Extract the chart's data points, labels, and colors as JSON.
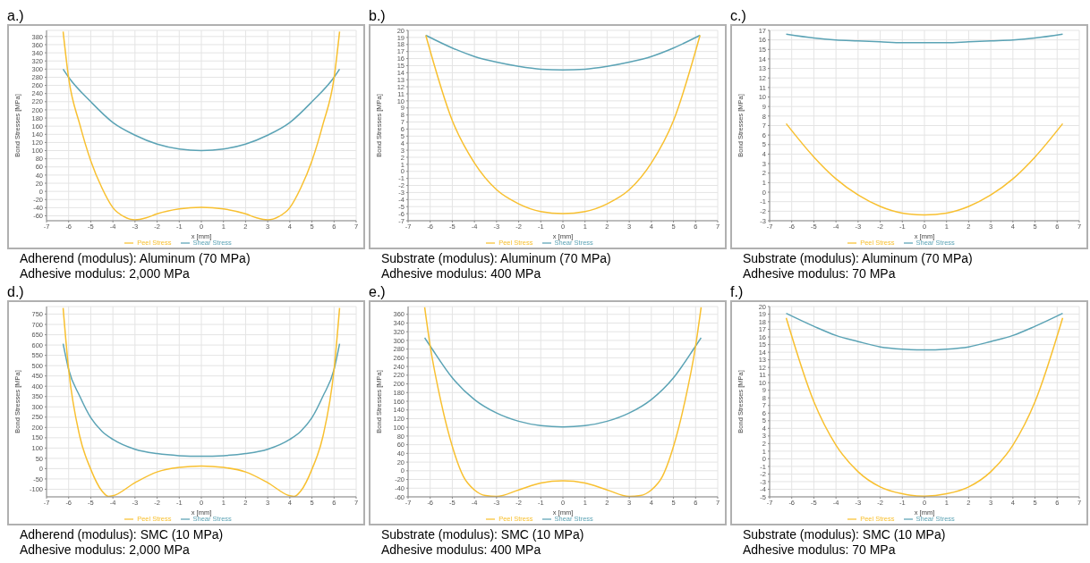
{
  "chart_data": [
    {
      "type": "line",
      "title": "a.)",
      "xlabel": "x [mm]",
      "ylabel": "Bond Stresses [MPa]",
      "xlim": [
        -7,
        7
      ],
      "xticks": [
        -7,
        -6,
        -5,
        -4,
        -3,
        -2,
        -1,
        0,
        1,
        2,
        3,
        4,
        5,
        6,
        7
      ],
      "ylim": [
        -72,
        395
      ],
      "yticks": [
        -60,
        -40,
        -20,
        0,
        20,
        40,
        60,
        80,
        100,
        120,
        140,
        160,
        180,
        200,
        220,
        240,
        260,
        280,
        300,
        320,
        340,
        360,
        380
      ],
      "grid": true,
      "legend": "bottom",
      "annotations": [
        "Adherend (modulus): Aluminum (70 MPa)",
        "Adhesive modulus: 2,000 MPa"
      ],
      "series": [
        {
          "name": "Shear Stress",
          "color": "#5ba3b5",
          "x": [
            -6.25,
            -6,
            -5,
            -4,
            -3,
            -2,
            -1,
            0,
            1,
            2,
            3,
            4,
            5,
            6,
            6.25
          ],
          "values": [
            300,
            280,
            220,
            169,
            138,
            116,
            104,
            100,
            104,
            116,
            138,
            169,
            220,
            280,
            300
          ]
        },
        {
          "name": "Peel Stress",
          "color": "#f8c030",
          "x": [
            -6.25,
            -6,
            -5.5,
            -5,
            -4.5,
            -4,
            -3.5,
            -3,
            -2.5,
            -2,
            -1,
            0,
            1,
            2,
            2.5,
            3,
            3.5,
            4,
            4.5,
            5,
            5.5,
            6,
            6.25
          ],
          "values": [
            392,
            278,
            165,
            75,
            9,
            -40,
            -62,
            -70,
            -65,
            -55,
            -43,
            -39,
            -43,
            -55,
            -65,
            -70,
            -62,
            -40,
            9,
            75,
            165,
            278,
            392
          ]
        }
      ]
    },
    {
      "type": "line",
      "title": "b.)",
      "xlabel": "x [mm]",
      "ylabel": "Bond Stresses [MPa]",
      "xlim": [
        -7,
        7
      ],
      "xticks": [
        -7,
        -6,
        -5,
        -4,
        -3,
        -2,
        -1,
        0,
        1,
        2,
        3,
        4,
        5,
        6,
        7
      ],
      "ylim": [
        -7,
        20
      ],
      "yticks": [
        -7,
        -6,
        -5,
        -4,
        -3,
        -2,
        -1,
        0,
        1,
        2,
        3,
        4,
        5,
        6,
        7,
        8,
        9,
        10,
        11,
        12,
        13,
        14,
        15,
        16,
        17,
        18,
        19,
        20
      ],
      "grid": true,
      "legend": "bottom",
      "annotations": [
        "Substrate (modulus): Aluminum (70 MPa)",
        "Adhesive modulus: 400 MPa"
      ],
      "series": [
        {
          "name": "Shear Stress",
          "color": "#5ba3b5",
          "x": [
            -6.2,
            -5,
            -4,
            -3,
            -2,
            -1,
            0,
            1,
            2,
            3,
            4,
            5,
            6.2
          ],
          "values": [
            19.3,
            17.5,
            16.3,
            15.5,
            14.9,
            14.5,
            14.4,
            14.5,
            14.9,
            15.5,
            16.3,
            17.5,
            19.3
          ]
        },
        {
          "name": "Peel Stress",
          "color": "#f8c030",
          "x": [
            -6.2,
            -5,
            -4,
            -3,
            -2,
            -1,
            0,
            1,
            2,
            3,
            4,
            5,
            6.2
          ],
          "values": [
            19.3,
            7.2,
            1.2,
            -2.6,
            -4.6,
            -5.7,
            -6.0,
            -5.7,
            -4.6,
            -2.6,
            1.2,
            7.2,
            19.3
          ]
        }
      ]
    },
    {
      "type": "line",
      "title": "c.)",
      "xlabel": "x [mm]",
      "ylabel": "Bond Stresses [MPa]",
      "xlim": [
        -7,
        7
      ],
      "xticks": [
        -7,
        -6,
        -5,
        -4,
        -3,
        -2,
        -1,
        0,
        1,
        2,
        3,
        4,
        5,
        6,
        7
      ],
      "ylim": [
        -3,
        17
      ],
      "yticks": [
        -3,
        -2,
        -1,
        0,
        1,
        2,
        3,
        4,
        5,
        6,
        7,
        8,
        9,
        10,
        11,
        12,
        13,
        14,
        15,
        16,
        17
      ],
      "grid": true,
      "legend": "bottom",
      "annotations": [
        "Substrate (modulus): Aluminum (70 MPa)",
        "Adhesive modulus: 70 MPa"
      ],
      "series": [
        {
          "name": "Shear Stress",
          "color": "#5ba3b5",
          "x": [
            -6.25,
            -5,
            -4,
            -3,
            -2,
            -1,
            0,
            1,
            2,
            3,
            4,
            5,
            6.25
          ],
          "values": [
            16.6,
            16.2,
            16.0,
            15.9,
            15.8,
            15.7,
            15.7,
            15.7,
            15.8,
            15.9,
            16.0,
            16.2,
            16.6
          ]
        },
        {
          "name": "Peel Stress",
          "color": "#f8c030",
          "x": [
            -6.25,
            -5,
            -4,
            -3,
            -2,
            -1,
            0,
            1,
            2,
            3,
            4,
            5,
            6.25
          ],
          "values": [
            7.2,
            3.7,
            1.4,
            -0.3,
            -1.5,
            -2.2,
            -2.4,
            -2.2,
            -1.5,
            -0.3,
            1.4,
            3.7,
            7.2
          ]
        }
      ]
    },
    {
      "type": "line",
      "title": "d.)",
      "xlabel": "x [mm]",
      "ylabel": "Bond Stresses [MPa]",
      "xlim": [
        -7,
        7
      ],
      "xticks": [
        -7,
        -6,
        -5,
        -4,
        -3,
        -2,
        -1,
        0,
        1,
        2,
        3,
        4,
        5,
        6,
        7
      ],
      "ylim": [
        -137,
        787
      ],
      "yticks": [
        -100,
        -50,
        0,
        50,
        100,
        150,
        200,
        250,
        300,
        350,
        400,
        450,
        500,
        550,
        600,
        650,
        700,
        750
      ],
      "grid": true,
      "legend": "bottom",
      "annotations": [
        "Adherend (modulus): SMC (10 MPa)",
        "Adhesive modulus: 2,000 MPa"
      ],
      "series": [
        {
          "name": "Shear Stress",
          "color": "#5ba3b5",
          "x": [
            -6.25,
            -6,
            -5.5,
            -5,
            -4.5,
            -4,
            -3,
            -2,
            -1,
            0,
            1,
            2,
            3,
            4,
            4.5,
            5,
            5.5,
            6,
            6.25
          ],
          "values": [
            606,
            481,
            352,
            247,
            182,
            142,
            94,
            73,
            63,
            60,
            63,
            73,
            94,
            142,
            182,
            247,
            352,
            481,
            606
          ]
        },
        {
          "name": "Peel Stress",
          "color": "#f8c030",
          "x": [
            -6.25,
            -6,
            -5.5,
            -5,
            -4.5,
            -4.2,
            -4,
            -3,
            -2,
            -1,
            0,
            1,
            2,
            3,
            4,
            4.2,
            4.5,
            5,
            5.5,
            6,
            6.25
          ],
          "values": [
            780,
            481,
            158,
            -3,
            -108,
            -135,
            -132,
            -68,
            -16,
            6,
            13,
            6,
            -16,
            -68,
            -132,
            -135,
            -108,
            -3,
            158,
            481,
            780
          ]
        }
      ]
    },
    {
      "type": "line",
      "title": "e.)",
      "xlabel": "x [mm]",
      "ylabel": "Bond Stresses [MPa]",
      "xlim": [
        -7,
        7
      ],
      "xticks": [
        -7,
        -6,
        -5,
        -4,
        -3,
        -2,
        -1,
        0,
        1,
        2,
        3,
        4,
        5,
        6,
        7
      ],
      "ylim": [
        -60,
        378
      ],
      "yticks": [
        -60,
        -40,
        -20,
        0,
        20,
        40,
        60,
        80,
        100,
        120,
        140,
        160,
        180,
        200,
        220,
        240,
        260,
        280,
        300,
        320,
        340,
        360
      ],
      "grid": true,
      "legend": "bottom",
      "annotations": [
        "Substrate (modulus): SMC (10 MPa)",
        "Adhesive modulus: 400 MPa"
      ],
      "series": [
        {
          "name": "Shear Stress",
          "color": "#5ba3b5",
          "x": [
            -6.25,
            -6,
            -5,
            -4,
            -3,
            -2,
            -1,
            0,
            1,
            2,
            3,
            4,
            5,
            6,
            6.25
          ],
          "values": [
            306,
            287,
            214,
            164,
            133,
            114,
            104,
            101,
            104,
            114,
            133,
            164,
            214,
            287,
            306
          ]
        },
        {
          "name": "Peel Stress",
          "color": "#f8c030",
          "x": [
            -6.25,
            -6,
            -5.5,
            -5,
            -4.5,
            -4,
            -3.5,
            -3,
            -2,
            -1,
            0,
            1,
            2,
            3,
            3.5,
            4,
            4.5,
            5,
            5.5,
            6,
            6.25
          ],
          "values": [
            376,
            287,
            156,
            56,
            -13,
            -44,
            -57,
            -59,
            -44,
            -28,
            -23,
            -28,
            -44,
            -59,
            -57,
            -44,
            -13,
            56,
            156,
            287,
            376
          ]
        }
      ]
    },
    {
      "type": "line",
      "title": "f.)",
      "xlabel": "x [mm]",
      "ylabel": "Bond Stresses [MPa]",
      "xlim": [
        -7,
        7
      ],
      "xticks": [
        -7,
        -6,
        -5,
        -4,
        -3,
        -2,
        -1,
        0,
        1,
        2,
        3,
        4,
        5,
        6,
        7
      ],
      "ylim": [
        -5,
        20
      ],
      "yticks": [
        -5,
        -4,
        -3,
        -2,
        -1,
        0,
        1,
        2,
        3,
        4,
        5,
        6,
        7,
        8,
        9,
        10,
        11,
        12,
        13,
        14,
        15,
        16,
        17,
        18,
        19,
        20
      ],
      "grid": true,
      "legend": "bottom",
      "annotations": [
        "Substrate (modulus): SMC (10 MPa)",
        "Adhesive modulus: 70 MPa"
      ],
      "series": [
        {
          "name": "Shear Stress",
          "color": "#5ba3b5",
          "x": [
            -6.25,
            -5,
            -4,
            -3,
            -2,
            -1,
            0,
            1,
            2,
            3,
            4,
            5,
            6.25
          ],
          "values": [
            19.1,
            17.4,
            16.2,
            15.4,
            14.7,
            14.4,
            14.3,
            14.4,
            14.7,
            15.4,
            16.2,
            17.4,
            19.1
          ]
        },
        {
          "name": "Peel Stress",
          "color": "#f8c030",
          "x": [
            -6.25,
            -5,
            -4,
            -3,
            -2,
            -1,
            0,
            1,
            2,
            3,
            4,
            5,
            6.25
          ],
          "values": [
            18.5,
            7.5,
            1.8,
            -1.7,
            -3.7,
            -4.6,
            -4.9,
            -4.6,
            -3.7,
            -1.7,
            1.8,
            7.5,
            18.5
          ]
        }
      ]
    }
  ]
}
